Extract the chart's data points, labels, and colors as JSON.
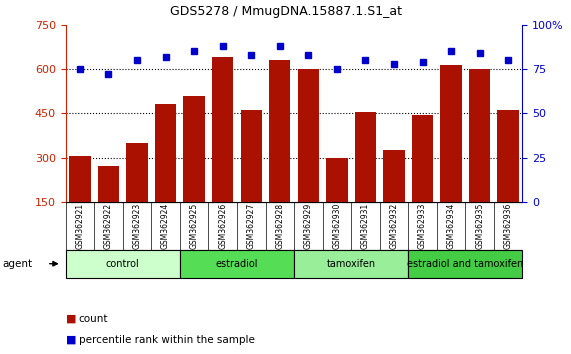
{
  "title": "GDS5278 / MmugDNA.15887.1.S1_at",
  "samples": [
    "GSM362921",
    "GSM362922",
    "GSM362923",
    "GSM362924",
    "GSM362925",
    "GSM362926",
    "GSM362927",
    "GSM362928",
    "GSM362929",
    "GSM362930",
    "GSM362931",
    "GSM362932",
    "GSM362933",
    "GSM362934",
    "GSM362935",
    "GSM362936"
  ],
  "counts": [
    305,
    270,
    350,
    480,
    510,
    640,
    460,
    630,
    600,
    300,
    455,
    325,
    445,
    615,
    600,
    460
  ],
  "percentiles": [
    75,
    72,
    80,
    82,
    85,
    88,
    83,
    88,
    83,
    75,
    80,
    78,
    79,
    85,
    84,
    80
  ],
  "groups": [
    {
      "label": "control",
      "start": 0,
      "end": 4,
      "color": "#ccffcc"
    },
    {
      "label": "estradiol",
      "start": 4,
      "end": 8,
      "color": "#55dd55"
    },
    {
      "label": "tamoxifen",
      "start": 8,
      "end": 12,
      "color": "#99ee99"
    },
    {
      "label": "estradiol and tamoxifen",
      "start": 12,
      "end": 16,
      "color": "#44cc44"
    }
  ],
  "ylim_left": [
    150,
    750
  ],
  "ylim_right": [
    0,
    100
  ],
  "yticks_left": [
    150,
    300,
    450,
    600,
    750
  ],
  "yticks_right": [
    0,
    25,
    50,
    75,
    100
  ],
  "bar_color": "#aa1100",
  "dot_color": "#0000cc",
  "left_axis_color": "#cc2200",
  "right_axis_color": "#0000cc",
  "grid_yticks": [
    300,
    450,
    600
  ]
}
